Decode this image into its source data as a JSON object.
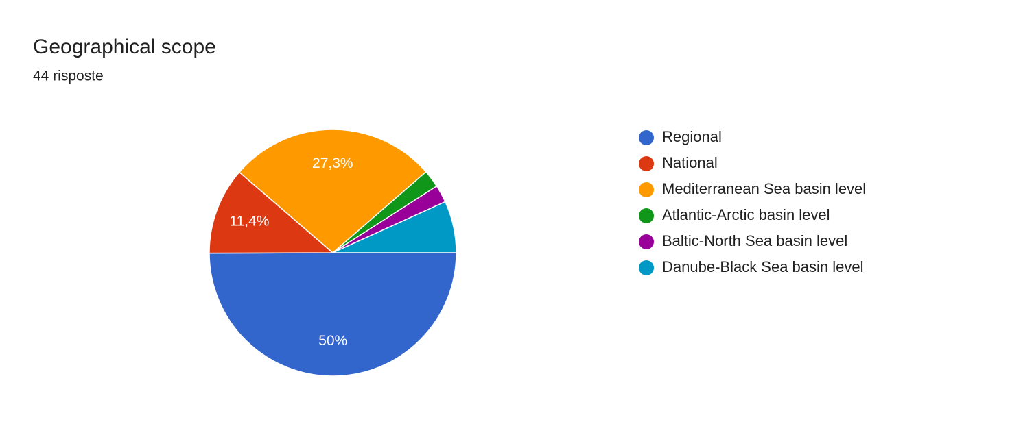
{
  "chart_data": {
    "type": "pie",
    "title": "Geographical scope",
    "subtitle": "44 risposte",
    "categories": [
      "Regional",
      "National",
      "Mediterranean Sea basin level",
      "Atlantic-Arctic basin level",
      "Baltic-North Sea basin level",
      "Danube-Black Sea basin level"
    ],
    "values": [
      50,
      11.4,
      27.3,
      2.3,
      2.3,
      6.8
    ],
    "value_labels": [
      "50%",
      "11,4%",
      "27,3%",
      null,
      null,
      null
    ],
    "colors": [
      "#3366cc",
      "#dc3912",
      "#ff9900",
      "#109618",
      "#990099",
      "#0099c6"
    ],
    "legend": "right"
  }
}
